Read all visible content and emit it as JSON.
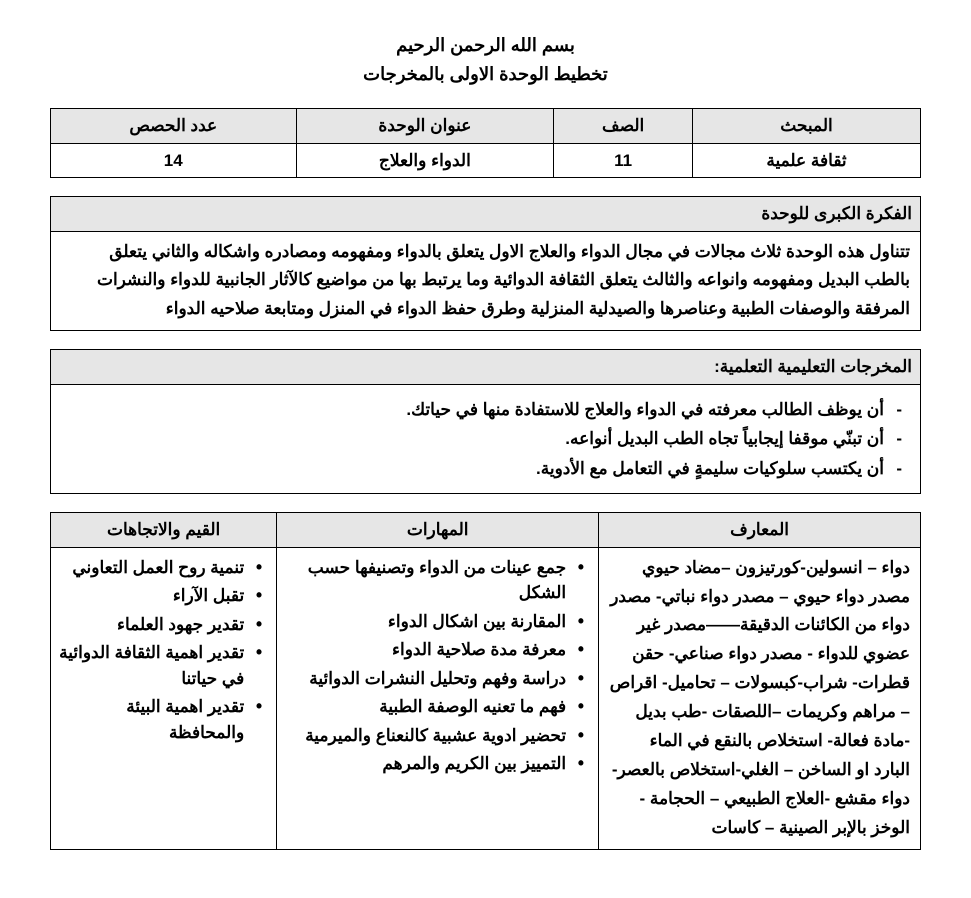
{
  "header": {
    "bismillah": "بسم الله الرحمن الرحيم",
    "title": "تخطيط الوحدة الاولى بالمخرجات"
  },
  "info_table": {
    "headers": {
      "subject": "المبحث",
      "grade": "الصف",
      "unit_title": "عنوان الوحدة",
      "periods": "عدد الحصص"
    },
    "values": {
      "subject": "ثقافة علمية",
      "grade": "11",
      "unit_title": "الدواء والعلاج",
      "periods": "14"
    }
  },
  "big_idea": {
    "label": "الفكرة الكبرى للوحدة",
    "text": "تتناول هذه الوحدة ثلاث مجالات في مجال الدواء والعلاج الاول يتعلق بالدواء ومفهومه ومصادره واشكاله والثاني يتعلق بالطب البديل ومفهومه وانواعه والثالث يتعلق  الثقافة الدوائية وما يرتبط بها من مواضيع كالآثار الجانبية للدواء والنشرات المرفقة والوصفات الطبية وعناصرها والصيدلية المنزلية وطرق حفظ الدواء في المنزل ومتابعة صلاحيه الدواء"
  },
  "outcomes": {
    "label": "المخرجات التعليمية التعلمية:",
    "items": [
      "أن يوظف الطالب معرفته في الدواء والعلاج للاستفادة منها في حياتك.",
      "أن تبنّي موقفا إيجابياً تجاه الطب البديل أنواعه.",
      "أن يكتسب سلوكيات سليمةٍ في التعامل مع الأدوية."
    ]
  },
  "ksv": {
    "headers": {
      "knowledge": "المعارف",
      "skills": "المهارات",
      "values": "القيم والاتجاهات"
    },
    "knowledge_text": "دواء – انسولين-كورتيزون –مضاد حيوي مصدر دواء حيوي – مصدر دواء نباتي- مصدر دواء من الكائنات الدقيقة——مصدر غير عضوي للدواء - مصدر دواء صناعي- حقن قطرات- شراب-كبسولات – تحاميل- اقراص –  مراهم وكريمات –اللصقات -طب بديل -مادة فعالة- استخلاص بالنقع في الماء البارد او الساخن – الغلي-استخلاص بالعصر- دواء مقشع -العلاج الطبيعي  – الحجامة -  الوخز بالإبر الصينية – كاسات",
    "skills": [
      "جمع عينات من الدواء وتصنيفها حسب الشكل",
      "المقارنة بين اشكال الدواء",
      "معرفة مدة صلاحية الدواء",
      "دراسة وفهم وتحليل النشرات الدوائية",
      "فهم ما تعنيه الوصفة الطبية",
      "تحضير ادوية عشبية كالنعناع والميرمية",
      "التمييز بين الكريم والمرهم"
    ],
    "values": [
      "تنمية روح العمل التعاوني",
      "تقبل الآراء",
      "تقدير جهود العلماء",
      "تقدير اهمية الثقافة الدوائية في حياتنا",
      "تقدير اهمية البيئة والمحافظة"
    ]
  }
}
